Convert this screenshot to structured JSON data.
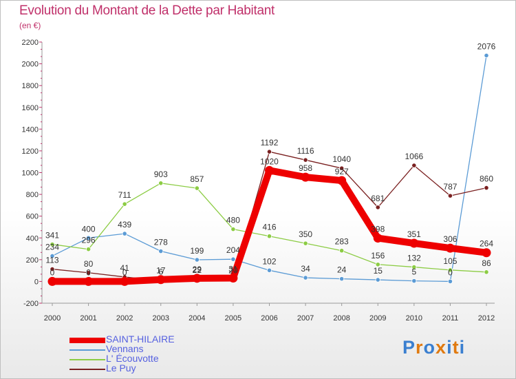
{
  "header": {
    "title": "Evolution du Montant de la Dette par Habitant",
    "subtitle": "(en €)"
  },
  "logo": {
    "text": "Proxiti",
    "colors": [
      "#3a7fd0",
      "#e07a10",
      "#3a7fd0",
      "#e07a10",
      "#3a7fd0",
      "#e07a10",
      "#3a7fd0"
    ]
  },
  "chart_data": {
    "type": "line",
    "x": [
      "2000",
      "2001",
      "2002",
      "2003",
      "2004",
      "2005",
      "2006",
      "2007",
      "2008",
      "2009",
      "2010",
      "2011",
      "2012"
    ],
    "ylim": [
      -200,
      2200
    ],
    "yticks": [
      -200,
      0,
      200,
      400,
      600,
      800,
      1000,
      1200,
      1400,
      1600,
      1800,
      2000,
      2200
    ],
    "grid": false,
    "legend_position": "bottom-left",
    "series": [
      {
        "name": "SAINT-HILAIRE",
        "color": "#ee0000",
        "values": [
          0,
          0,
          0,
          17,
          29,
          31,
          1020,
          958,
          927,
          398,
          351,
          306,
          264
        ]
      },
      {
        "name": "Vennans",
        "color": "#5b9bd5",
        "values": [
          234,
          400,
          439,
          278,
          199,
          204,
          102,
          34,
          24,
          15,
          5,
          0,
          2076
        ]
      },
      {
        "name": "L' Écouvotte",
        "color": "#8ccc44",
        "values": [
          341,
          296,
          711,
          903,
          857,
          480,
          416,
          350,
          283,
          156,
          132,
          105,
          86
        ]
      },
      {
        "name": "Le Puy",
        "color": "#7a2020",
        "values": [
          113,
          80,
          41,
          6,
          22,
          20,
          1192,
          1116,
          1040,
          681,
          1066,
          787,
          860
        ]
      }
    ]
  }
}
